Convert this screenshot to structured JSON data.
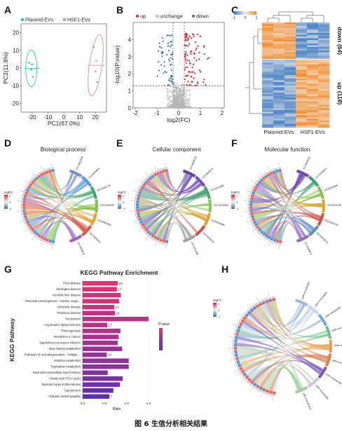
{
  "figure": {
    "panel_labels": [
      "A",
      "B",
      "C",
      "D",
      "E",
      "F",
      "G",
      "H"
    ],
    "caption": "图 6 生信分析相关结果"
  },
  "colors": {
    "plasmid": "#3dbfb0",
    "hsf1": "#e58a8f",
    "up": "#d7262b",
    "down": "#3a6fb0",
    "unchange": "#b5b5b5",
    "kegg_high": "#e8356e",
    "kegg_low": "#5a2fb6"
  },
  "panelA": {
    "legend": [
      "Plasmid-EVs",
      "HSF1-EVs"
    ],
    "chart_data": {
      "type": "scatter",
      "xlabel": "PC1(67.0%)",
      "ylabel": "PC2(11.8%)",
      "xticks": [
        "-20",
        "-10",
        "0",
        "10",
        "20"
      ],
      "yticks": [
        "-20",
        "-10",
        "0",
        "10",
        "20"
      ],
      "xlim": [
        -27,
        27
      ],
      "ylim": [
        -25,
        25
      ],
      "series": [
        {
          "name": "Plasmid-EVs",
          "points": [
            [
              -22,
              3
            ],
            [
              -20,
              2
            ],
            [
              -19.5,
              -5
            ],
            [
              -20.5,
              -1
            ]
          ]
        },
        {
          "name": "HSF1-EVs",
          "points": [
            [
              19,
              12
            ],
            [
              20,
              -2
            ],
            [
              21,
              -8
            ],
            [
              20.5,
              4
            ]
          ]
        }
      ]
    }
  },
  "panelB": {
    "legend": [
      "up",
      "unchange",
      "down"
    ],
    "chart_data": {
      "type": "scatter",
      "xlabel": "log2(FC)",
      "ylabel": "-log10(P.value)",
      "xticks": [
        "-2",
        "-1",
        "0",
        "1",
        "2"
      ],
      "yticks": [
        "0",
        "1",
        "2",
        "3",
        "4"
      ],
      "xlim": [
        -2.1,
        2.1
      ],
      "ylim": [
        0,
        5
      ],
      "thresholds": {
        "log2fc": [
          -0.26,
          0.26
        ],
        "neg_log10_p": 1.3
      }
    }
  },
  "panelC": {
    "colorbar_ticks": [
      "-1",
      "0",
      "1"
    ],
    "xlabels": [
      "Plasmid-EVs",
      "HSF1-EVs"
    ],
    "row_groups": [
      "down (64)",
      "up (118)"
    ],
    "chart_data": {
      "type": "heatmap",
      "groups": [
        "Plasmid-EVs",
        "HSF1-EVs"
      ],
      "clusters": [
        {
          "name": "down (64)",
          "plasmid": "high",
          "hsf1": "low"
        },
        {
          "name": "up (118)",
          "plasmid": "low",
          "hsf1": "high"
        }
      ]
    }
  },
  "panelD": {
    "title": "Biological process",
    "legend_title": "logFC",
    "legend_ticks": [
      "1",
      "0",
      "-1"
    ],
    "terms": [
      "GO:0002376",
      "GO:0006955",
      "GO:0050776",
      "GO:0045087",
      "GO:0002682",
      "GO:0006952",
      "GO:0009615"
    ]
  },
  "panelE": {
    "title": "Cellular component",
    "legend_title": "logFC",
    "legend_ticks": [
      "1",
      "0",
      "-1"
    ],
    "terms": [
      "GO:0005576",
      "GO:0005615",
      "GO:0031982",
      "GO:0070062",
      "GO:0005886",
      "GO:0016020",
      "GO:0031988"
    ]
  },
  "panelF": {
    "title": "Molecular function",
    "legend_title": "logFC",
    "legend_ticks": [
      "1",
      "0",
      "-1"
    ],
    "terms": [
      "GO:0005515",
      "GO:0003824",
      "GO:0005488",
      "GO:0016787",
      "GO:0005102",
      "GO:0003676",
      "GO:0046872"
    ]
  },
  "panelG": {
    "ylabel": "KEGG Pathway",
    "legend_title": "P.value",
    "chart_data": {
      "type": "bar",
      "title": "KEGG Pathway Enrichment",
      "xlabel": "Ratio",
      "ylabel": "KEGG Pathway",
      "xticks": [
        "0.0",
        "0.5",
        "1.0",
        "1.5"
      ],
      "xlim": [
        0,
        1.55
      ],
      "categories": [
        "Prion disease",
        "Huntington disease",
        "Alcoholic liver disease",
        "Chemical carcinogenesis - reactive oxyge...",
        "Alzheimer disease",
        "Parkinson disease",
        "Peroxisome",
        "Amyotrophic lateral sclerosis",
        "Thermogenesis",
        "MicroRNAs in cancer",
        "Staphylococcus aureus infection",
        "beta-Alanine metabolism",
        "Pathways of neurodegeneration - multiple ...",
        "Histidine metabolism",
        "Tryptophan metabolism",
        "Neutrophil extracellular trap formation",
        "Citrate cycle (TCA cycle)",
        "Systemic lupus erythematosus",
        "Gap junction",
        "Diabetic cardiomyopathy"
      ],
      "values": [
        0.8,
        0.78,
        0.87,
        0.83,
        0.72,
        0.74,
        1.5,
        0.56,
        0.86,
        0.82,
        0.8,
        0.9,
        0.55,
        1.05,
        1.05,
        0.57,
        0.91,
        0.85,
        0.7,
        0.61
      ],
      "counts": [
        "23",
        "17",
        "",
        "",
        "17",
        "16",
        "",
        "17",
        "",
        "",
        "",
        "",
        "17",
        "",
        "",
        "",
        "",
        "",
        "",
        "7"
      ],
      "pvalue_shade": [
        0.05,
        0.1,
        0.2,
        0.15,
        0.25,
        0.28,
        0.3,
        0.35,
        0.4,
        0.45,
        0.5,
        0.55,
        0.58,
        0.62,
        0.65,
        0.72,
        0.78,
        0.85,
        0.9,
        0.98
      ]
    }
  },
  "panelH": {
    "legend_title": "logFC",
    "legend_ticks": [
      "1",
      "0",
      "-1"
    ],
    "terms": [
      "path:mmu00250",
      "path:mmu04936",
      "path:mmu00280",
      "path:mmu05010",
      "path:mmu04714",
      "path:mmu05012",
      "path:mmu04146",
      "path:mmu00380",
      "path:mmu00410"
    ]
  }
}
